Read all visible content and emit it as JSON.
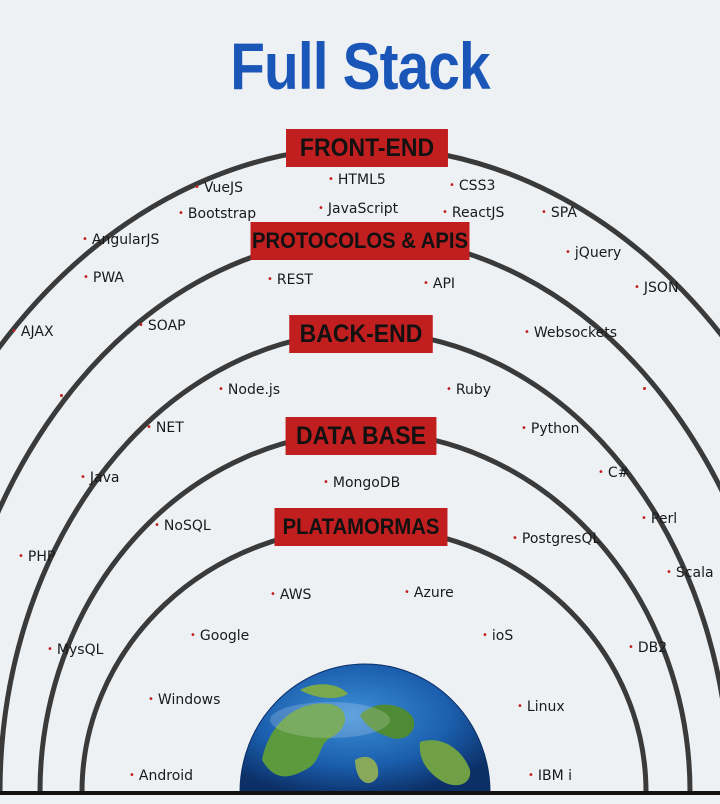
{
  "title": "Full Stack",
  "bands": {
    "frontend": "FRONT-END",
    "protocols": "PROTOCOLOS & APIS",
    "backend": "BACK-END",
    "database": "DATA BASE",
    "platforms": "PLATAMORMAS"
  },
  "frontend_items": [
    "VueJS",
    "HTML5",
    "CSS3",
    "Bootstrap",
    "JavaScript",
    "ReactJS",
    "SPA",
    "AngularJS",
    "jQuery"
  ],
  "protocol_items": [
    "PWA",
    "REST",
    "API",
    "JSON",
    "AJAX",
    "SOAP",
    "Websockets"
  ],
  "backend_items": [
    "Node.js",
    "Ruby",
    "NET",
    "Python",
    "Java",
    "C#",
    "Perl",
    "PHP",
    "Scala"
  ],
  "database_items": [
    "MongoDB",
    "NoSQL",
    "PostgresQL",
    "MysQL",
    "DB2"
  ],
  "platform_items": [
    "AWS",
    "Azure",
    "Google",
    "ioS",
    "Windows",
    "Linux",
    "Android",
    "IBM i"
  ],
  "colors": {
    "title": "#1a56b8",
    "band": "#c11f1f",
    "arc": "#3a3a3a",
    "background": "#eef1f4"
  },
  "icon": "globe-icon"
}
